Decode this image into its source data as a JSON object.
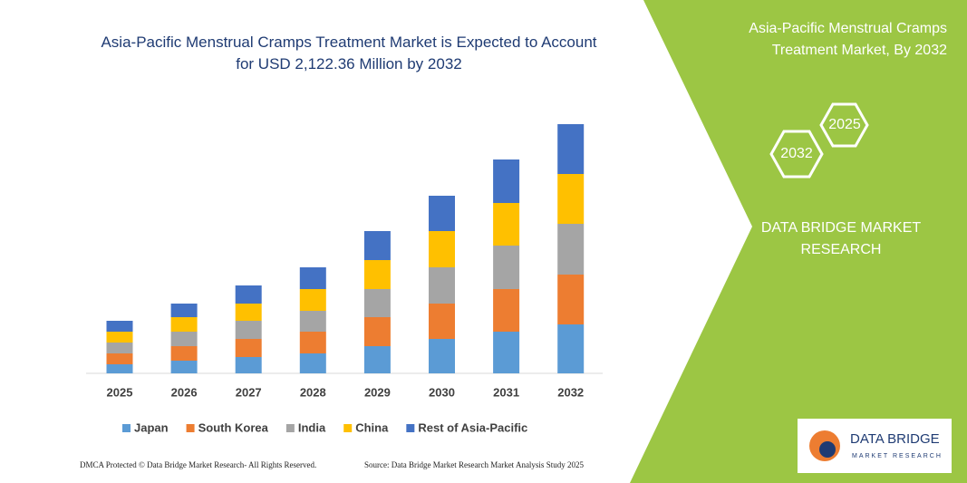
{
  "chart_data": {
    "type": "stacked-bar",
    "title": "Asia-Pacific Menstrual Cramps Treatment Market is Expected to Account for USD 2,122.36 Million by 2032",
    "categories": [
      "2025",
      "2026",
      "2027",
      "2028",
      "2029",
      "2030",
      "2031",
      "2032"
    ],
    "series": [
      {
        "name": "Japan",
        "color": "#5b9bd5",
        "values": [
          10,
          14,
          18,
          22,
          30,
          38,
          46,
          54
        ]
      },
      {
        "name": "South Korea",
        "color": "#ed7d31",
        "values": [
          12,
          16,
          20,
          24,
          32,
          39,
          47,
          55
        ]
      },
      {
        "name": "India",
        "color": "#a5a5a5",
        "values": [
          12,
          16,
          20,
          23,
          31,
          40,
          48,
          56
        ]
      },
      {
        "name": "China",
        "color": "#ffc000",
        "values": [
          12,
          16,
          19,
          24,
          32,
          40,
          47,
          55
        ]
      },
      {
        "name": "Rest of Asia-Pacific",
        "color": "#4472c4",
        "values": [
          12,
          15,
          20,
          24,
          32,
          39,
          48,
          55
        ]
      }
    ],
    "legend": "bottom"
  },
  "panel": {
    "title": "Asia-Pacific Menstrual Cramps Treatment Market, By 2032",
    "hex_end": "2032",
    "hex_start": "2025",
    "brand": "DATA BRIDGE MARKET RESEARCH"
  },
  "logo": {
    "name": "DATA BRIDGE",
    "tagline": "MARKET RESEARCH"
  },
  "footer": {
    "left": "DMCA Protected © Data Bridge Market Research- All Rights Reserved.",
    "right": "Source: Data Bridge Market Research Market Analysis Study 2025"
  }
}
